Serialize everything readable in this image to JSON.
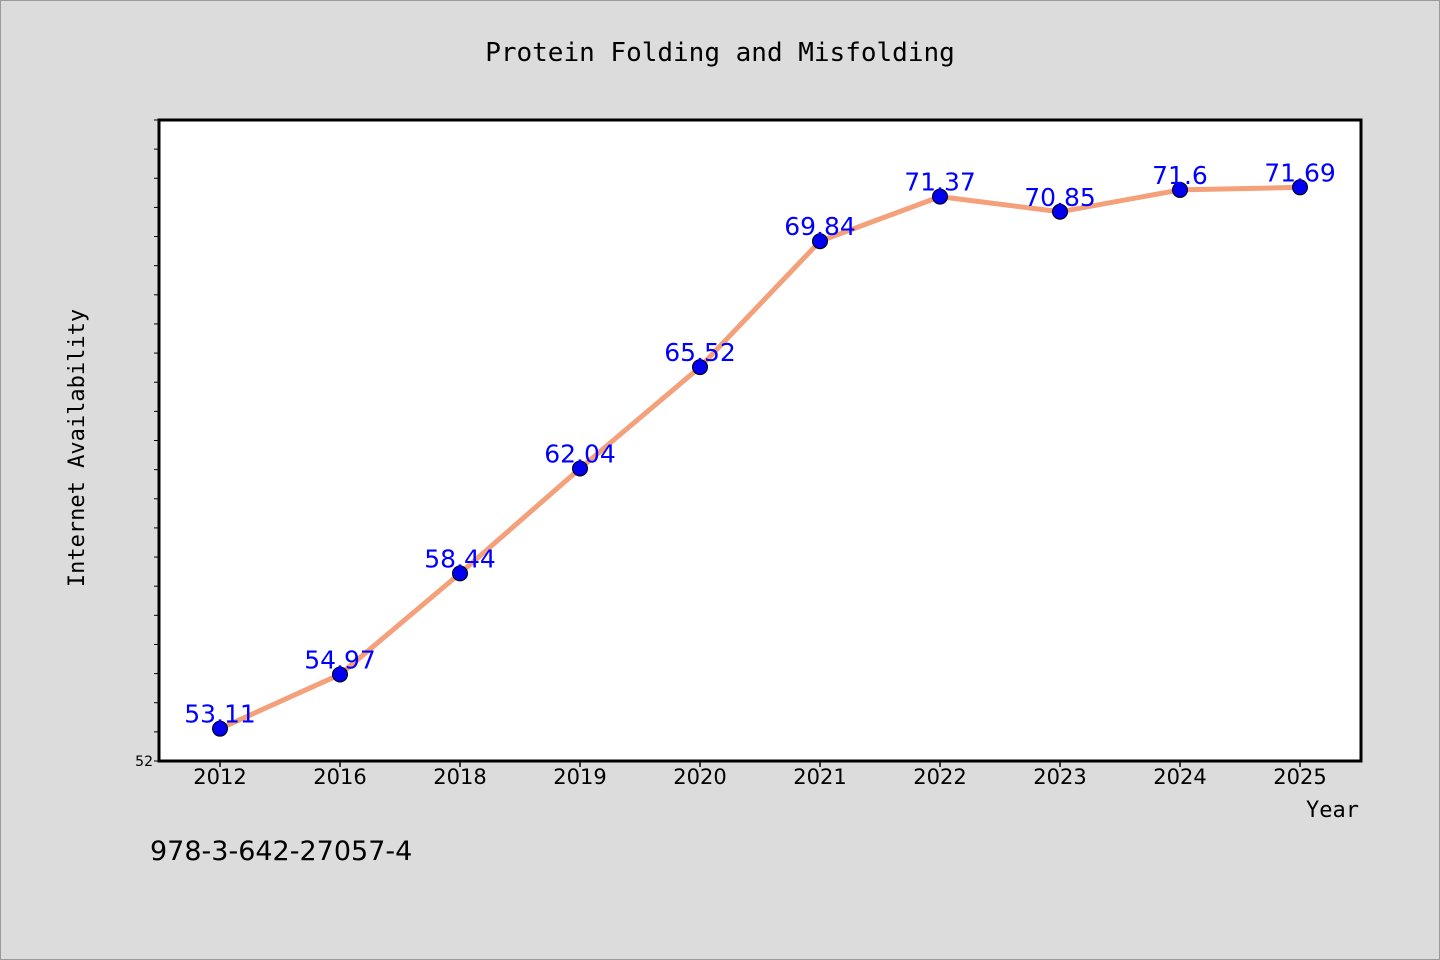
{
  "chart_data": {
    "type": "line",
    "title": "Protein Folding and Misfolding",
    "xlabel": "Year",
    "ylabel": "Internet Availability",
    "categories": [
      "2012",
      "2016",
      "2018",
      "2019",
      "2020",
      "2021",
      "2022",
      "2023",
      "2024",
      "2025"
    ],
    "series": [
      {
        "values": [
          53.11,
          54.97,
          58.44,
          62.04,
          65.52,
          69.84,
          71.37,
          70.85,
          71.6,
          71.69
        ],
        "labels": [
          "53.11",
          "54.97",
          "58.44",
          "62.04",
          "65.52",
          "69.84",
          "71.37",
          "70.85",
          "71.6",
          "71.69"
        ],
        "line_color": "#f4a07a",
        "marker_color": "#0000ee"
      }
    ],
    "ylim": [
      52,
      74
    ],
    "y_tick_labels": [
      "52"
    ],
    "y_minor_tick_step": 1,
    "grid": false,
    "legend": "none",
    "label_color": "#0000ff",
    "background": "#dcdcdc",
    "plot_background": "#ffffff"
  },
  "footer": {
    "isbn": "978-3-642-27057-4"
  }
}
